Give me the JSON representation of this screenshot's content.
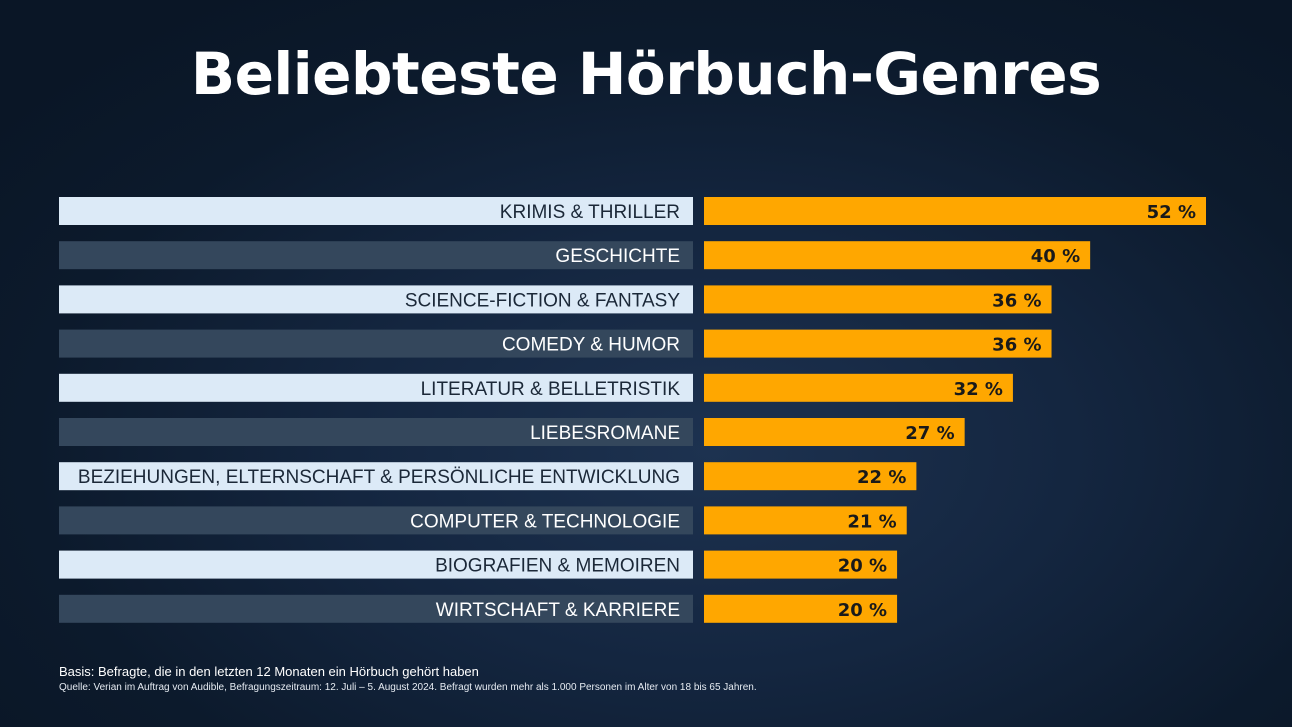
{
  "page": {
    "title": "Beliebteste Hörbuch-Genres",
    "basis": "Basis: Befragte, die in den letzten 12 Monaten ein Hörbuch gehört haben",
    "source": "Quelle: Verian im Auftrag von Audible, Befragungszeitraum: 12. Juli – 5. August 2024. Befragt wurden mehr als 1.000 Personen im Alter von 18 bis 65 Jahren."
  },
  "colors": {
    "bar": "#FFA700",
    "label_bg_light": "#DCEAF7",
    "label_bg_dark": "#34475C",
    "label_text_light": "#1B2838",
    "label_text_dark": "#FFFFFF",
    "value_text": "#1A1A1A"
  },
  "chart_data": {
    "type": "bar",
    "orientation": "horizontal",
    "title": "Beliebteste Hörbuch-Genres",
    "xlabel": "",
    "ylabel": "",
    "xlim": [
      0,
      52
    ],
    "unit": "%",
    "categories": [
      "KRIMIS & THRILLER",
      "GESCHICHTE",
      "SCIENCE-FICTION & FANTASY",
      "COMEDY & HUMOR",
      "LITERATUR & BELLETRISTIK",
      "LIEBESROMANE",
      "BEZIEHUNGEN, ELTERNSCHAFT & PERSÖNLICHE ENTWICKLUNG",
      "COMPUTER & TECHNOLOGIE",
      "BIOGRAFIEN & MEMOIREN",
      "WIRTSCHAFT & KARRIERE"
    ],
    "values": [
      52,
      40,
      36,
      36,
      32,
      27,
      22,
      21,
      20,
      20
    ],
    "value_labels": [
      "52 %",
      "40 %",
      "36 %",
      "36 %",
      "32 %",
      "27 %",
      "22 %",
      "21 %",
      "20 %",
      "20 %"
    ]
  }
}
